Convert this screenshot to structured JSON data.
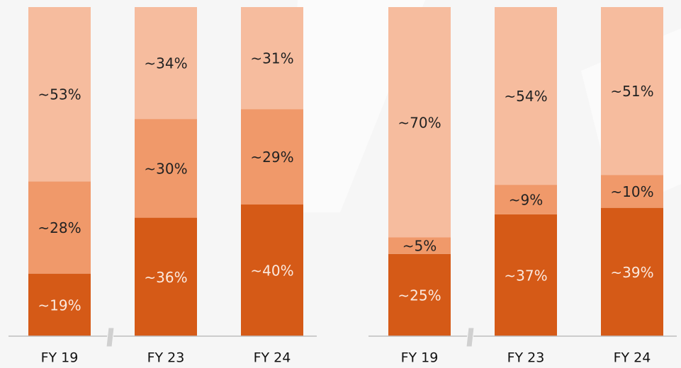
{
  "chart_data": [
    {
      "type": "bar",
      "stacked": true,
      "categories": [
        "FY 19",
        "FY 23",
        "FY 24"
      ],
      "ylim": [
        0,
        100
      ],
      "series": [
        {
          "color": "#d55a17",
          "values": [
            19,
            36,
            40
          ],
          "value_labels": [
            "~19%",
            "~36%",
            "~40%"
          ]
        },
        {
          "color": "#f0996a",
          "values": [
            28,
            30,
            29
          ],
          "value_labels": [
            "~28%",
            "~30%",
            "~29%"
          ]
        },
        {
          "color": "#f6bc9e",
          "values": [
            53,
            34,
            31
          ],
          "value_labels": [
            "~53%",
            "~34%",
            "~31%"
          ]
        }
      ]
    },
    {
      "type": "bar",
      "stacked": true,
      "categories": [
        "FY 19",
        "FY 23",
        "FY 24"
      ],
      "ylim": [
        0,
        100
      ],
      "series": [
        {
          "color": "#d55a17",
          "values": [
            25,
            37,
            39
          ],
          "value_labels": [
            "~25%",
            "~37%",
            "~39%"
          ]
        },
        {
          "color": "#f0996a",
          "values": [
            5,
            9,
            10
          ],
          "value_labels": [
            "~5%",
            "~9%",
            "~10%"
          ]
        },
        {
          "color": "#f6bc9e",
          "values": [
            70,
            54,
            51
          ],
          "value_labels": [
            "~70%",
            "~54%",
            "~51%"
          ]
        }
      ]
    }
  ]
}
